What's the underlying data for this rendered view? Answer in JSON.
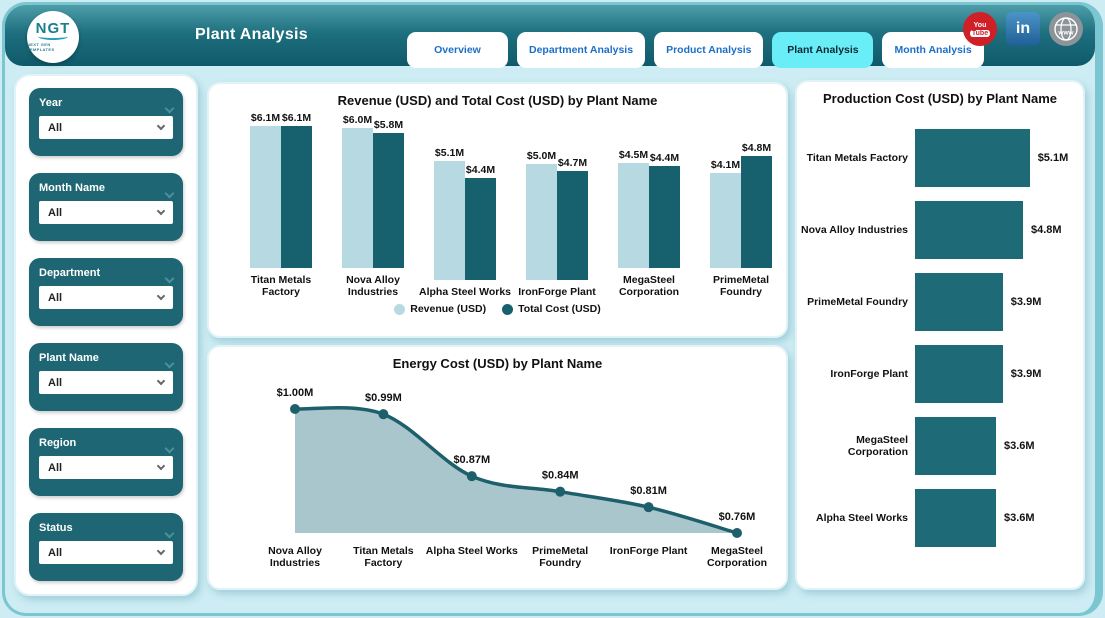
{
  "header": {
    "title": "Plant Analysis",
    "logo": {
      "text": "NGT",
      "subtext": "NEXT GEN TEMPLATES"
    },
    "tabs": [
      {
        "label": "Overview",
        "active": false
      },
      {
        "label": "Department Analysis",
        "active": false
      },
      {
        "label": "Product Analysis",
        "active": false
      },
      {
        "label": "Plant Analysis",
        "active": true
      },
      {
        "label": "Month Analysis",
        "active": false
      }
    ],
    "social_icons": [
      {
        "name": "youtube-icon",
        "text_top": "You",
        "text_bottom": "Tube"
      },
      {
        "name": "linkedin-icon",
        "text": "in"
      },
      {
        "name": "website-icon",
        "text": "www"
      }
    ]
  },
  "filters": [
    {
      "label": "Year",
      "value": "All"
    },
    {
      "label": "Month Name",
      "value": "All"
    },
    {
      "label": "Department",
      "value": "All"
    },
    {
      "label": "Plant Name",
      "value": "All"
    },
    {
      "label": "Region",
      "value": "All"
    },
    {
      "label": "Status",
      "value": "All"
    }
  ],
  "colors": {
    "revenue": "#b7dae2",
    "total_cost": "#17606d",
    "hbar": "#1e6a76",
    "area_fill": "#a8c6cb",
    "line": "#1d5f6b",
    "accent_teal": "#1e6673",
    "active_tab": "#69edf6",
    "tab_text": "#1b6fc6"
  },
  "chart_data": [
    {
      "type": "bar",
      "title": "Revenue (USD) and Total Cost (USD) by Plant Name",
      "categories": [
        "Titan Metals Factory",
        "Nova Alloy Industries",
        "Alpha Steel Works",
        "IronForge Plant",
        "MegaSteel Corporation",
        "PrimeMetal Foundry"
      ],
      "series": [
        {
          "name": "Revenue (USD)",
          "color": "#b7dae2",
          "values": [
            6.1,
            6.0,
            5.1,
            5.0,
            4.5,
            4.1
          ],
          "labels": [
            "$6.1M",
            "$6.0M",
            "$5.1M",
            "$5.0M",
            "$4.5M",
            "$4.1M"
          ]
        },
        {
          "name": "Total Cost (USD)",
          "color": "#17606d",
          "values": [
            6.1,
            5.8,
            4.4,
            4.7,
            4.4,
            4.8
          ],
          "labels": [
            "$6.1M",
            "$5.8M",
            "$4.4M",
            "$4.7M",
            "$4.4M",
            "$4.8M"
          ]
        }
      ],
      "ylim": [
        0,
        6.1
      ],
      "legend_position": "bottom"
    },
    {
      "type": "area",
      "title": "Energy Cost (USD) by Plant Name",
      "categories": [
        "Nova Alloy Industries",
        "Titan Metals Factory",
        "Alpha Steel Works",
        "PrimeMetal Foundry",
        "IronForge Plant",
        "MegaSteel Corporation"
      ],
      "values": [
        1.0,
        0.99,
        0.87,
        0.84,
        0.81,
        0.76
      ],
      "labels": [
        "$1.00M",
        "$0.99M",
        "$0.87M",
        "$0.84M",
        "$0.81M",
        "$0.76M"
      ],
      "ylim": [
        0.76,
        1.0
      ]
    },
    {
      "type": "bar-horizontal",
      "title": "Production Cost (USD) by Plant Name",
      "categories": [
        "Titan Metals Factory",
        "Nova Alloy Industries",
        "PrimeMetal Foundry",
        "IronForge Plant",
        "MegaSteel Corporation",
        "Alpha Steel Works"
      ],
      "values": [
        5.1,
        4.8,
        3.9,
        3.9,
        3.6,
        3.6
      ],
      "labels": [
        "$5.1M",
        "$4.8M",
        "$3.9M",
        "$3.9M",
        "$3.6M",
        "$3.6M"
      ],
      "xlim": [
        0,
        5.6
      ]
    }
  ]
}
